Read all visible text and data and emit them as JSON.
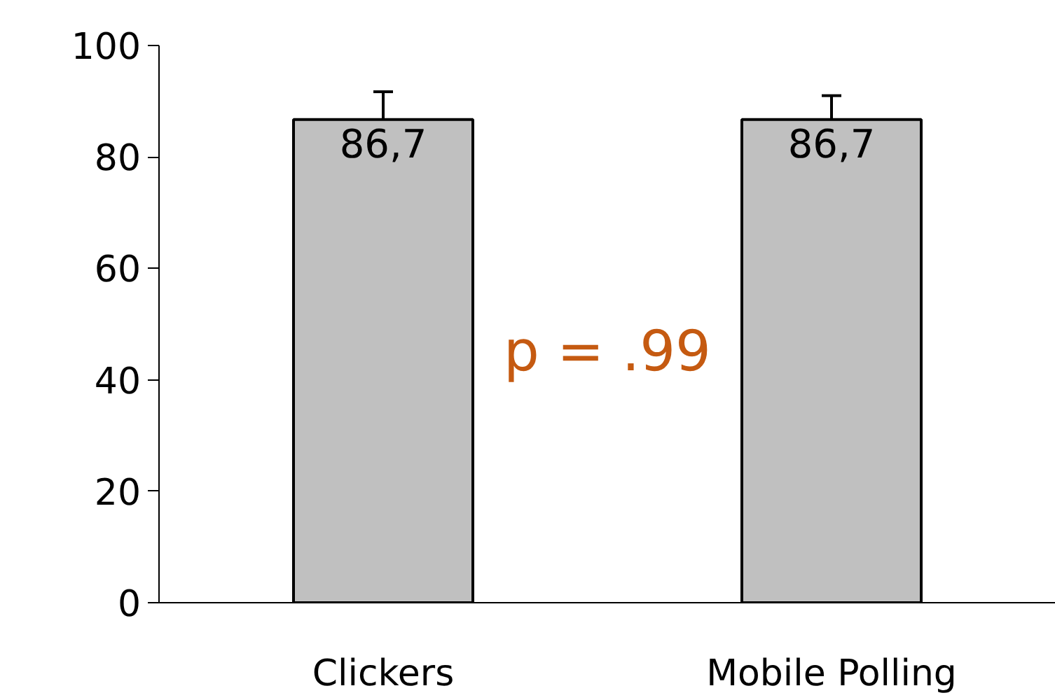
{
  "chart_data": {
    "type": "bar",
    "categories": [
      "Clickers",
      "Mobile Polling"
    ],
    "values": [
      86.7,
      86.7
    ],
    "value_labels": [
      "86,7",
      "86,7"
    ],
    "errors": [
      [
        86.7,
        91.7
      ],
      [
        86.7,
        91.0
      ]
    ],
    "color": "#c0c0c0",
    "ylim": [
      0,
      100
    ],
    "yticks": [
      0,
      20,
      40,
      60,
      80,
      100
    ],
    "annotations": [
      "p = .99"
    ]
  }
}
